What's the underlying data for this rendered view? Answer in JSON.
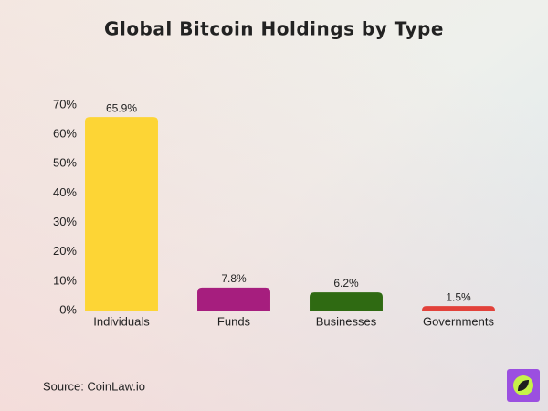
{
  "chart_data": {
    "type": "bar",
    "title": "Global Bitcoin Holdings by Type",
    "categories": [
      "Individuals",
      "Funds",
      "Businesses",
      "Governments"
    ],
    "values": [
      65.9,
      7.8,
      6.2,
      1.5
    ],
    "value_labels": [
      "65.9%",
      "7.8%",
      "6.2%",
      "1.5%"
    ],
    "colors": [
      "#fdd535",
      "#a61e7e",
      "#2f6a12",
      "#e2413a"
    ],
    "ylim": [
      0,
      70
    ],
    "yticks": [
      {
        "value": 0,
        "label": "0%"
      },
      {
        "value": 10,
        "label": "10%"
      },
      {
        "value": 20,
        "label": "20%"
      },
      {
        "value": 30,
        "label": "30%"
      },
      {
        "value": 40,
        "label": "40%"
      },
      {
        "value": 50,
        "label": "50%"
      },
      {
        "value": 60,
        "label": "60%"
      },
      {
        "value": 70,
        "label": "70%"
      }
    ],
    "grid": false,
    "source": "Source: CoinLaw.io"
  }
}
